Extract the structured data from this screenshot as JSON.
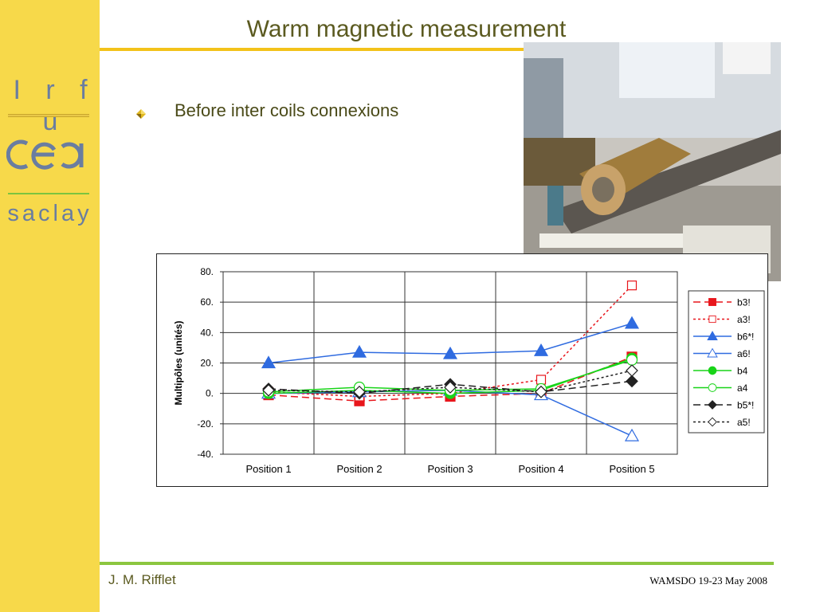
{
  "logos": {
    "lab": "I r f u",
    "institute": "cea",
    "site": "saclay"
  },
  "slide": {
    "title": "Warm magnetic measurement",
    "bullet": "Before inter coils connexions",
    "author": "J. M. Rifflet",
    "conference": "WAMSDO 19-23 May 2008"
  },
  "colors": {
    "sidebar": "#f7d94a",
    "title_rule": "#f3c21a",
    "bottom_rule": "#8cc63f",
    "logo": "#6a7da0"
  },
  "chart_data": {
    "type": "line",
    "title": "",
    "xlabel": "",
    "ylabel": "Multipôles (unités)",
    "ylim": [
      -40,
      80
    ],
    "yticks": [
      "80.",
      "60.",
      "40.",
      "20.",
      "0.",
      "-20.",
      "-40."
    ],
    "grid": true,
    "legend_position": "right",
    "categories": [
      "Position 1",
      "Position 2",
      "Position 3",
      "Position 4",
      "Position 5"
    ],
    "series": [
      {
        "name": "b3!",
        "values": [
          -1,
          -5,
          -2,
          0,
          24
        ],
        "color": "#e8161c",
        "dash": "dashed",
        "marker": "square-filled"
      },
      {
        "name": "a3!",
        "values": [
          1,
          -2,
          0,
          9,
          71
        ],
        "color": "#e8161c",
        "dash": "dotted",
        "marker": "square-open"
      },
      {
        "name": "b6*!",
        "values": [
          20,
          27,
          26,
          28,
          46
        ],
        "color": "#2f6be0",
        "dash": "solid",
        "marker": "triangle-filled"
      },
      {
        "name": "a6!",
        "values": [
          0,
          1,
          2,
          -1,
          -28
        ],
        "color": "#2f6be0",
        "dash": "solid",
        "marker": "triangle-open"
      },
      {
        "name": "b4",
        "values": [
          0,
          2,
          0,
          2,
          23
        ],
        "color": "#18d418",
        "dash": "solid",
        "marker": "circle-filled"
      },
      {
        "name": "a4",
        "values": [
          1,
          4,
          2,
          3,
          22
        ],
        "color": "#18d418",
        "dash": "solid",
        "marker": "circle-open"
      },
      {
        "name": "b5*!",
        "values": [
          3,
          0,
          6,
          1,
          8
        ],
        "color": "#222222",
        "dash": "dashed",
        "marker": "diamond-filled"
      },
      {
        "name": "a5!",
        "values": [
          2,
          1,
          4,
          1,
          15
        ],
        "color": "#222222",
        "dash": "dotted",
        "marker": "diamond-open"
      }
    ]
  }
}
